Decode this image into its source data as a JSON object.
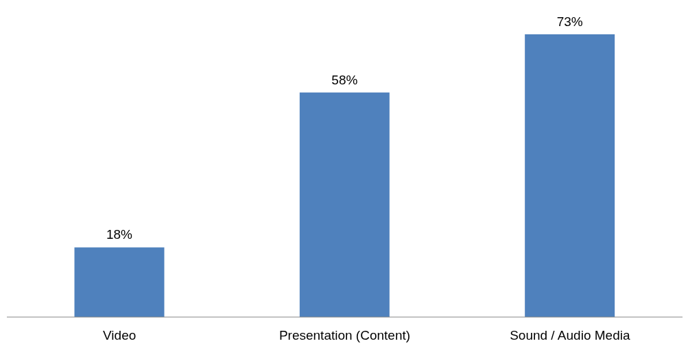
{
  "chart_data": {
    "type": "bar",
    "categories": [
      "Video",
      "Presentation (Content)",
      "Sound / Audio Media"
    ],
    "values": [
      18,
      58,
      73
    ],
    "value_labels": [
      "18%",
      "58%",
      "73%"
    ],
    "color": "#4f81bd",
    "grid": false,
    "legend": false
  }
}
